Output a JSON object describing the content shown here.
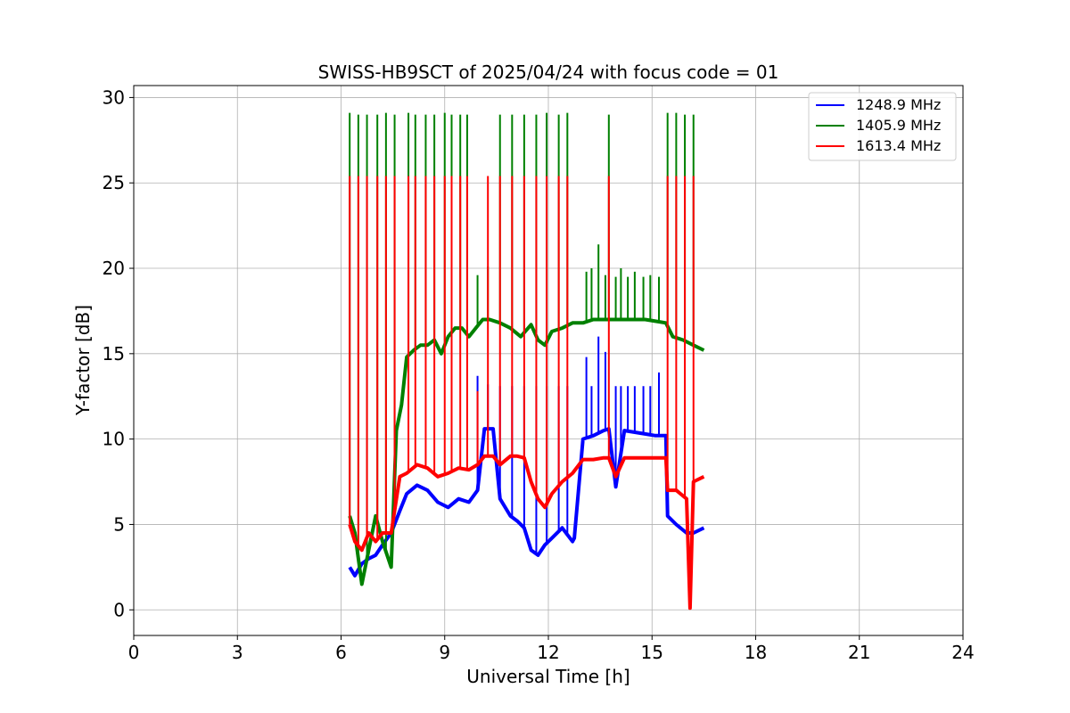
{
  "chart_data": {
    "type": "line",
    "title": "SWISS-HB9SCT of 2025/04/24 with focus code = 01",
    "xlabel": "Universal Time [h]",
    "ylabel": "Y-factor [dB]",
    "xlim": [
      0,
      24
    ],
    "ylim": [
      -1.5,
      30.7
    ],
    "xticks": [
      0,
      3,
      6,
      9,
      12,
      15,
      18,
      21,
      24
    ],
    "yticks": [
      0,
      5,
      10,
      15,
      20,
      25,
      30
    ],
    "grid": true,
    "legend_position": "top-right",
    "series": [
      {
        "name": "1248.9 MHz",
        "color": "#0000ff",
        "x": [
          6.25,
          6.4,
          6.6,
          6.8,
          7.0,
          7.2,
          7.45,
          7.7,
          7.9,
          8.2,
          8.5,
          8.8,
          9.1,
          9.4,
          9.7,
          9.95,
          10.15,
          10.4,
          10.6,
          10.9,
          11.1,
          11.3,
          11.5,
          11.7,
          11.9,
          12.1,
          12.4,
          12.7,
          12.75,
          13.0,
          13.3,
          13.6,
          13.75,
          13.95,
          14.2,
          14.5,
          14.8,
          15.1,
          15.4,
          15.45,
          15.7,
          16.0,
          16.2,
          16.5
        ],
        "y": [
          2.5,
          2.0,
          2.7,
          3.0,
          3.2,
          3.8,
          4.5,
          5.8,
          6.8,
          7.3,
          7.0,
          6.3,
          6.0,
          6.5,
          6.3,
          7.0,
          10.6,
          10.6,
          6.5,
          5.5,
          5.2,
          4.8,
          3.5,
          3.2,
          3.8,
          4.2,
          4.8,
          4.0,
          4.2,
          10.0,
          10.2,
          10.5,
          10.6,
          7.2,
          10.5,
          10.4,
          10.3,
          10.2,
          10.2,
          5.5,
          5.0,
          4.5,
          4.5,
          4.8
        ]
      },
      {
        "name": "1405.9 MHz",
        "color": "#008000",
        "x": [
          6.25,
          6.4,
          6.6,
          6.8,
          7.0,
          7.2,
          7.45,
          7.6,
          7.75,
          7.9,
          8.1,
          8.3,
          8.5,
          8.7,
          8.9,
          9.1,
          9.3,
          9.5,
          9.7,
          9.9,
          10.1,
          10.3,
          10.6,
          10.9,
          11.2,
          11.5,
          11.7,
          11.9,
          12.1,
          12.4,
          12.7,
          13.0,
          13.3,
          13.6,
          13.9,
          14.2,
          14.5,
          14.8,
          15.1,
          15.4,
          15.6,
          15.9,
          16.2,
          16.5
        ],
        "y": [
          5.5,
          4.5,
          1.5,
          3.5,
          5.5,
          4.0,
          2.5,
          10.5,
          12.0,
          14.8,
          15.2,
          15.5,
          15.5,
          15.8,
          15.0,
          16.0,
          16.5,
          16.5,
          16.0,
          16.5,
          17.0,
          17.0,
          16.8,
          16.5,
          16.0,
          16.7,
          15.8,
          15.5,
          16.3,
          16.5,
          16.8,
          16.8,
          17.0,
          17.0,
          17.0,
          17.0,
          17.0,
          17.0,
          16.9,
          16.8,
          16.0,
          15.8,
          15.5,
          15.2
        ]
      },
      {
        "name": "1613.4 MHz",
        "color": "#ff0000",
        "x": [
          6.25,
          6.4,
          6.6,
          6.8,
          7.0,
          7.2,
          7.45,
          7.7,
          7.9,
          8.2,
          8.5,
          8.8,
          9.1,
          9.4,
          9.7,
          9.95,
          10.15,
          10.4,
          10.6,
          10.9,
          11.1,
          11.3,
          11.5,
          11.7,
          11.9,
          12.1,
          12.4,
          12.7,
          13.0,
          13.3,
          13.6,
          13.75,
          13.95,
          14.2,
          14.5,
          14.8,
          15.1,
          15.4,
          15.45,
          15.7,
          16.0,
          16.1,
          16.2,
          16.5
        ],
        "y": [
          5.0,
          4.0,
          3.5,
          4.5,
          4.0,
          4.5,
          4.5,
          7.8,
          8.0,
          8.5,
          8.3,
          7.8,
          8.0,
          8.3,
          8.2,
          8.5,
          9.0,
          9.0,
          8.5,
          9.0,
          9.0,
          8.9,
          7.5,
          6.5,
          6.0,
          6.8,
          7.5,
          8.0,
          8.8,
          8.8,
          8.9,
          8.9,
          7.8,
          8.9,
          8.9,
          8.9,
          8.9,
          8.9,
          7.0,
          7.0,
          6.5,
          0.1,
          7.5,
          7.8
        ]
      }
    ],
    "spikes": [
      {
        "series": "1248.9 MHz",
        "x": [
          9.95,
          10.25,
          10.6,
          10.95,
          11.3,
          11.65,
          11.95,
          12.3,
          12.55,
          13.1,
          13.25,
          13.45,
          13.65,
          13.95,
          14.1,
          14.3,
          14.5,
          14.75,
          14.95,
          15.2
        ],
        "y": [
          13.7,
          13.2,
          13.1,
          13.1,
          13.1,
          13.1,
          13.1,
          13.1,
          13.1,
          14.8,
          13.1,
          16.0,
          15.1,
          13.1,
          13.1,
          13.1,
          13.1,
          13.1,
          13.1,
          13.9
        ]
      },
      {
        "series": "1405.9 MHz",
        "x": [
          6.25,
          6.5,
          6.75,
          7.05,
          7.3,
          7.55,
          7.95,
          8.15,
          8.45,
          8.7,
          9.0,
          9.2,
          9.45,
          9.65,
          9.95,
          10.25,
          10.6,
          10.95,
          11.3,
          11.65,
          11.95,
          12.3,
          12.55,
          13.1,
          13.25,
          13.45,
          13.65,
          13.75,
          13.95,
          14.1,
          14.3,
          14.5,
          14.75,
          14.95,
          15.2,
          15.45,
          15.7,
          15.95,
          16.2
        ],
        "y": [
          29.1,
          29.0,
          29.0,
          29.0,
          29.1,
          29.0,
          29.1,
          29.0,
          29.0,
          29.0,
          29.1,
          29.0,
          29.0,
          29.0,
          19.6,
          20.1,
          29.0,
          29.0,
          29.0,
          29.0,
          29.1,
          29.0,
          29.1,
          19.8,
          20.0,
          21.4,
          19.6,
          29.0,
          19.5,
          20.0,
          19.5,
          19.8,
          19.5,
          19.6,
          19.5,
          29.1,
          29.1,
          29.0,
          29.0
        ]
      },
      {
        "series": "1613.4 MHz",
        "x": [
          6.25,
          6.5,
          6.75,
          7.05,
          7.3,
          7.55,
          7.95,
          8.15,
          8.45,
          8.7,
          9.0,
          9.2,
          9.45,
          9.65,
          9.95,
          10.25,
          10.6,
          10.95,
          11.3,
          11.65,
          11.95,
          12.3,
          12.55,
          13.75,
          15.45,
          15.7,
          15.95,
          16.2
        ],
        "y": [
          25.4,
          25.4,
          25.4,
          25.4,
          25.4,
          25.4,
          25.4,
          25.4,
          25.4,
          25.4,
          25.4,
          25.4,
          25.4,
          25.4,
          12.8,
          25.4,
          25.4,
          25.4,
          25.4,
          25.4,
          25.4,
          25.4,
          25.4,
          25.4,
          25.4,
          25.4,
          25.4,
          25.4
        ]
      }
    ]
  }
}
